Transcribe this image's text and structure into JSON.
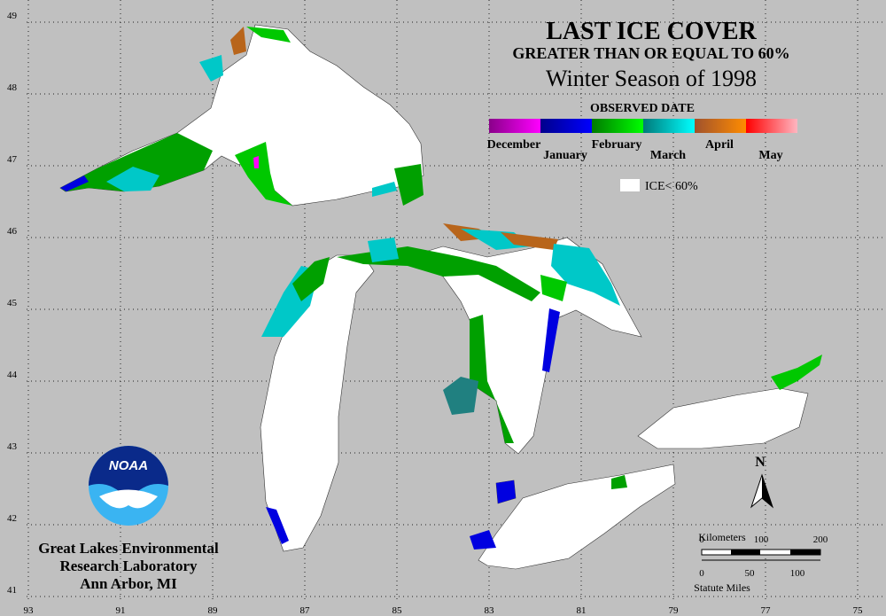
{
  "title": "LAST ICE COVER",
  "subtitle": "GREATER THAN OR EQUAL TO 60%",
  "season": "Winter Season of 1998",
  "legend": {
    "title": "OBSERVED DATE",
    "months": [
      "December",
      "January",
      "February",
      "March",
      "April",
      "May"
    ],
    "colors": [
      [
        "#8a008a",
        "#ff00ff"
      ],
      [
        "#00008b",
        "#0000ff"
      ],
      [
        "#007a00",
        "#00ff00"
      ],
      [
        "#007a7a",
        "#00ffff"
      ],
      [
        "#a0522d",
        "#ff8c00"
      ],
      [
        "#ff0000",
        "#ffb6c1"
      ]
    ],
    "no_ice_label": "ICE< 60%"
  },
  "latitudes": [
    49,
    48,
    47,
    46,
    45,
    44,
    43,
    42,
    41
  ],
  "longitudes": [
    93,
    91,
    89,
    87,
    85,
    83,
    81,
    79,
    77,
    75
  ],
  "north_label": "N",
  "scale": {
    "km_title": "Kilometers",
    "km_ticks": [
      "0",
      "100",
      "200"
    ],
    "mi_ticks": [
      "0",
      "50",
      "100"
    ],
    "mi_title": "Statute Miles"
  },
  "logo": "NOAA",
  "lab": [
    "Great Lakes Environmental",
    "Research Laboratory",
    "Ann Arbor, MI"
  ]
}
